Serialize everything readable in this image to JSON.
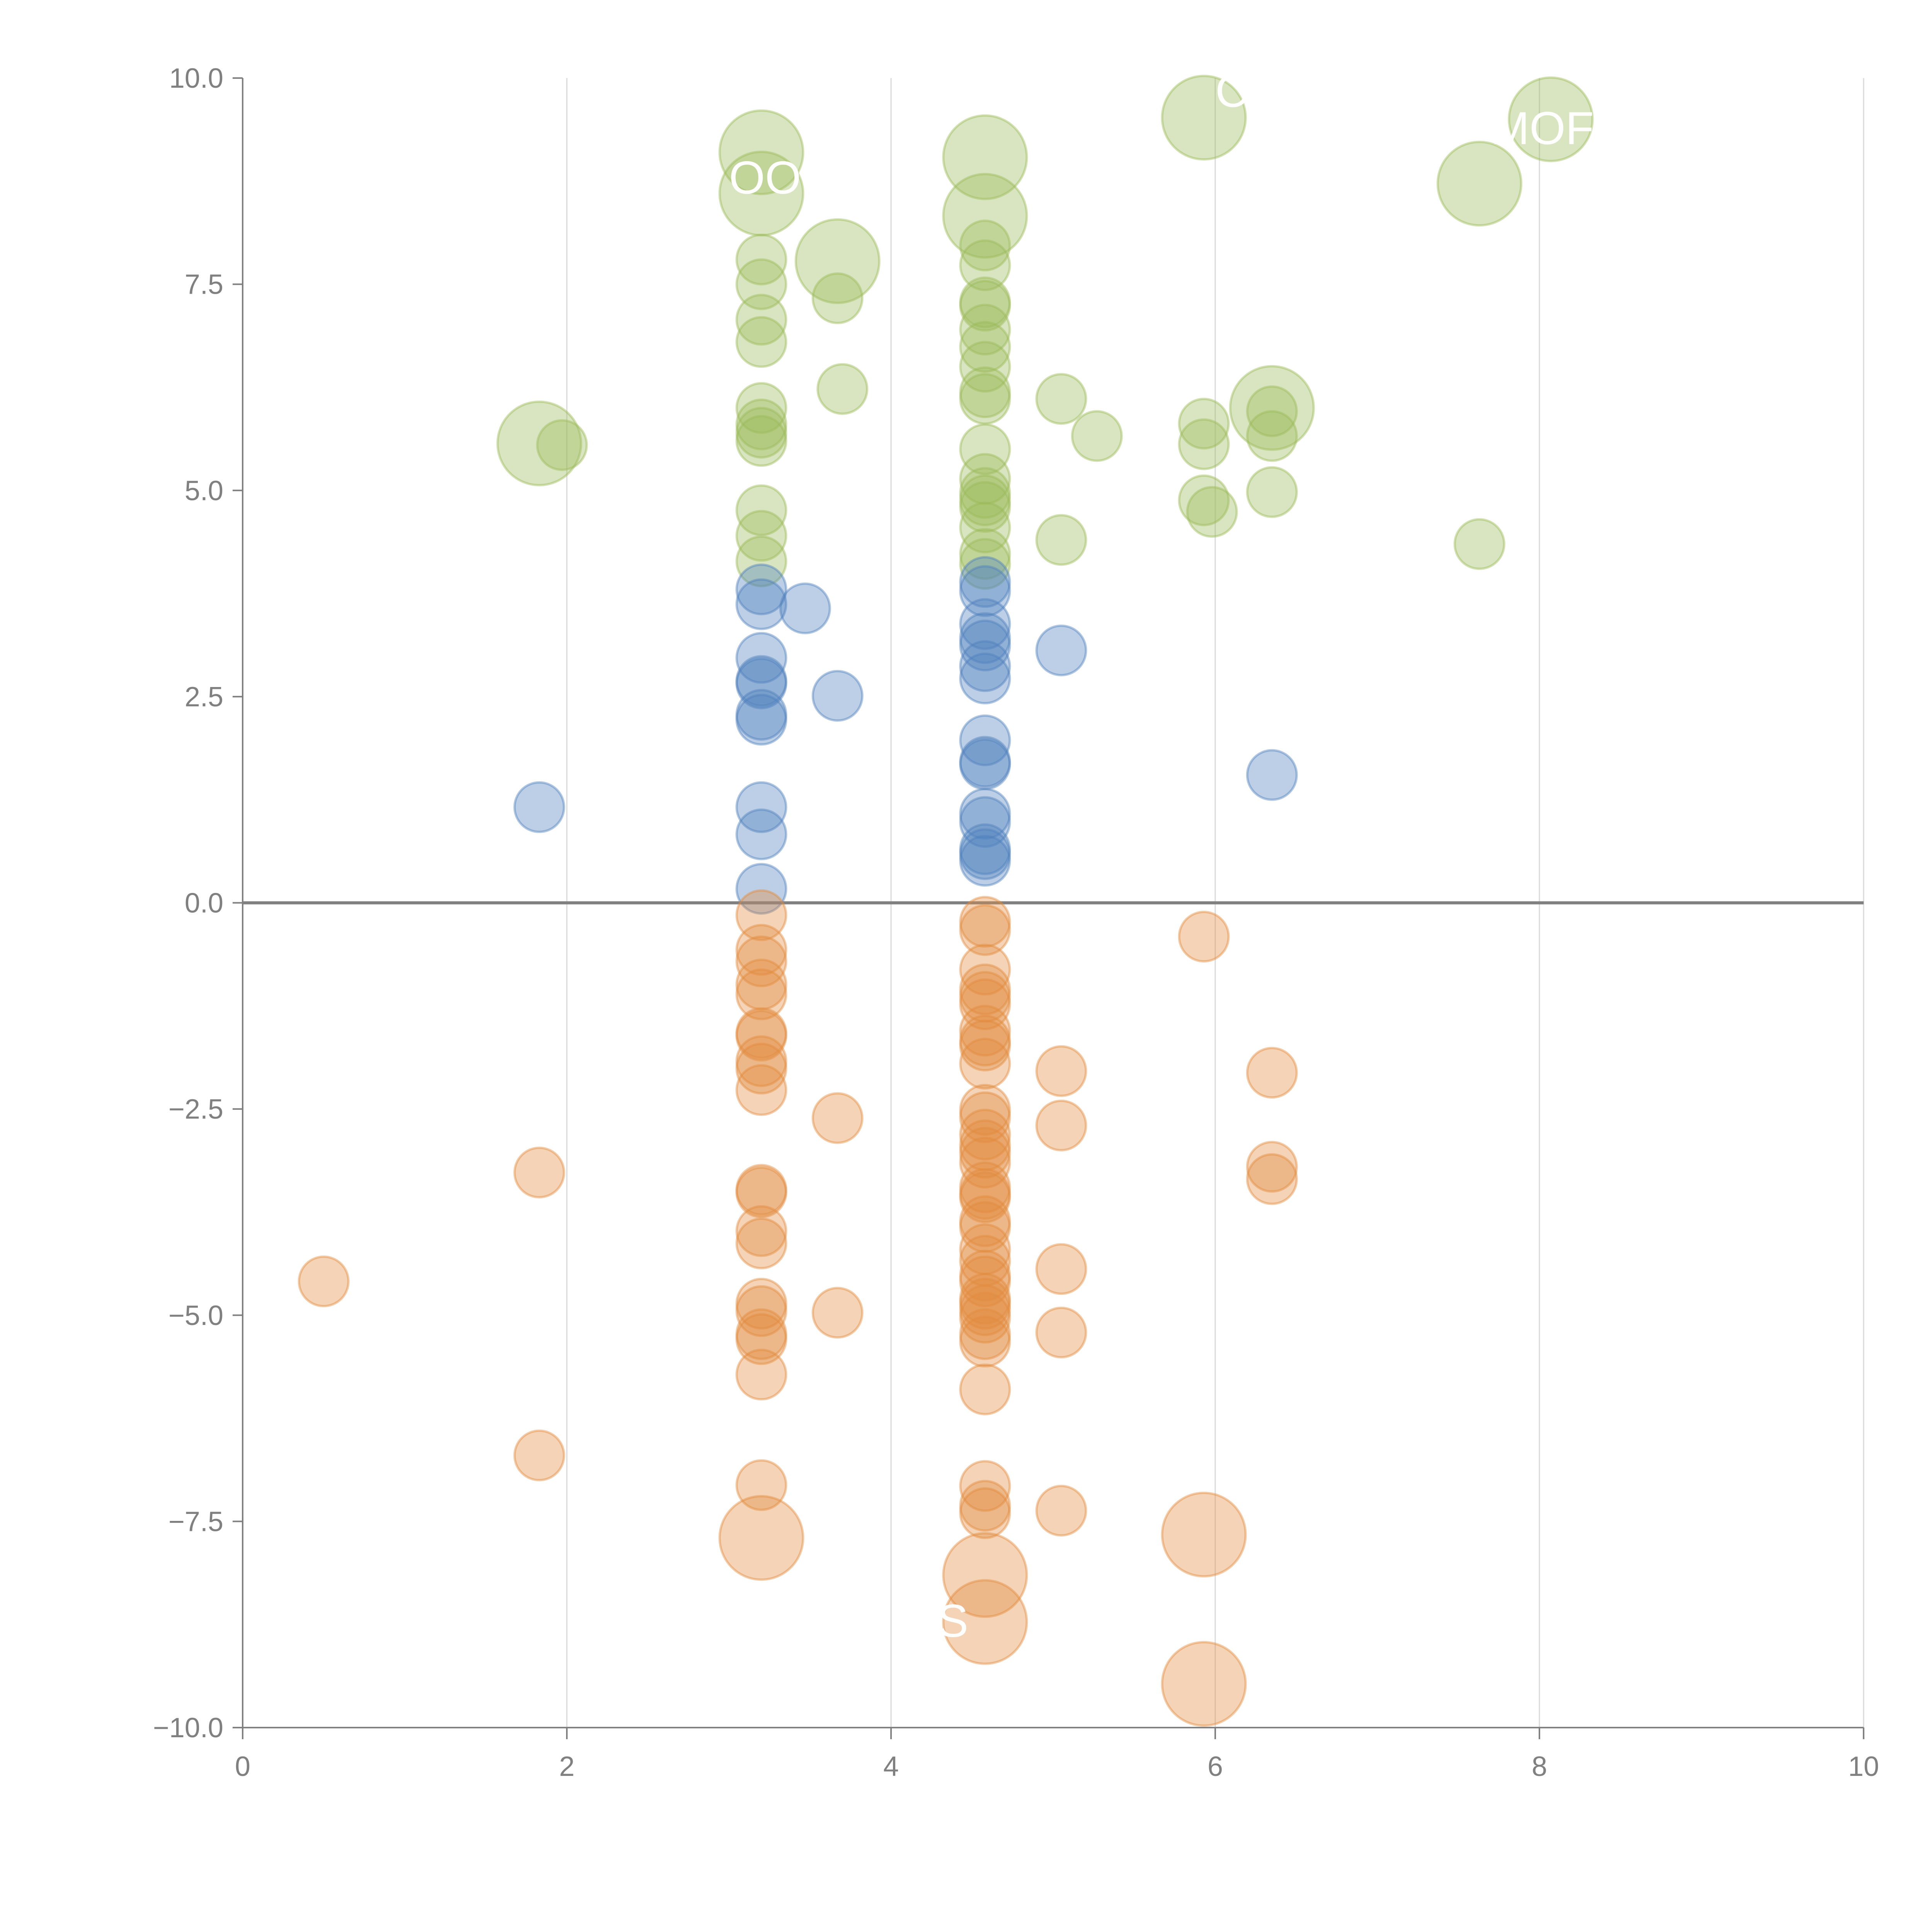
{
  "chart_data": {
    "type": "scatter",
    "variant": "bubble",
    "title": "",
    "xlabel": "",
    "ylabel": "",
    "xlim": [
      0,
      10
    ],
    "ylim": [
      -10,
      10
    ],
    "x_ticks": [
      0,
      2,
      4,
      6,
      8,
      10
    ],
    "x_tick_labels": [
      "0",
      "2",
      "4",
      "6",
      "8",
      "10"
    ],
    "y_ticks": [
      -10,
      -7.5,
      -5,
      -2.5,
      0,
      2.5,
      5,
      7.5,
      10
    ],
    "y_tick_labels": [
      "−10.0",
      "−7.5",
      "−5.0",
      "−2.5",
      "0.0",
      "2.5",
      "5.0",
      "7.5",
      "10.0"
    ],
    "grid": "vertical major lines at x ticks",
    "reference_line": {
      "y": 0
    },
    "legend": "none",
    "size_note": "size: 1 = small bubble, 2 = large bubble",
    "series": [
      {
        "name": "green",
        "color": "#9bbb59",
        "points": [
          [
            3.2,
            9.1,
            2
          ],
          [
            3.2,
            8.6,
            2
          ],
          [
            3.2,
            7.8,
            1
          ],
          [
            3.2,
            7.5,
            1
          ],
          [
            3.2,
            7.07,
            1
          ],
          [
            3.2,
            6.8,
            1
          ],
          [
            3.2,
            6.0,
            1
          ],
          [
            3.2,
            5.8,
            1
          ],
          [
            3.2,
            5.7,
            1
          ],
          [
            3.2,
            5.6,
            1
          ],
          [
            3.2,
            4.76,
            1
          ],
          [
            3.2,
            4.45,
            1
          ],
          [
            3.2,
            4.14,
            1
          ],
          [
            3.67,
            7.78,
            2
          ],
          [
            3.67,
            7.33,
            1
          ],
          [
            3.7,
            6.23,
            1
          ],
          [
            1.83,
            5.57,
            2
          ],
          [
            1.97,
            5.55,
            1
          ],
          [
            4.58,
            9.04,
            2
          ],
          [
            4.58,
            8.33,
            2
          ],
          [
            4.58,
            7.97,
            1
          ],
          [
            4.58,
            7.73,
            1
          ],
          [
            4.58,
            7.28,
            1
          ],
          [
            4.58,
            7.24,
            1
          ],
          [
            4.58,
            6.95,
            1
          ],
          [
            4.58,
            6.74,
            1
          ],
          [
            4.58,
            6.5,
            1
          ],
          [
            4.58,
            6.19,
            1
          ],
          [
            4.58,
            6.11,
            1
          ],
          [
            4.58,
            5.5,
            1
          ],
          [
            4.58,
            5.14,
            1
          ],
          [
            4.58,
            4.97,
            1
          ],
          [
            4.58,
            4.88,
            1
          ],
          [
            4.58,
            4.8,
            1
          ],
          [
            4.58,
            4.55,
            1
          ],
          [
            4.58,
            4.23,
            1
          ],
          [
            4.58,
            4.11,
            1
          ],
          [
            5.05,
            6.11,
            1
          ],
          [
            5.05,
            4.4,
            1
          ],
          [
            5.27,
            5.66,
            1
          ],
          [
            5.93,
            9.52,
            2
          ],
          [
            5.93,
            5.81,
            1
          ],
          [
            5.93,
            5.56,
            1
          ],
          [
            5.93,
            4.88,
            1
          ],
          [
            5.98,
            4.74,
            1
          ],
          [
            6.35,
            6.0,
            2
          ],
          [
            6.35,
            5.96,
            1
          ],
          [
            6.35,
            5.66,
            1
          ],
          [
            6.35,
            4.98,
            1
          ],
          [
            7.63,
            8.72,
            2
          ],
          [
            7.63,
            4.35,
            1
          ],
          [
            8.07,
            9.5,
            2
          ]
        ]
      },
      {
        "name": "blue",
        "color": "#4f81bd",
        "points": [
          [
            3.2,
            3.8,
            1
          ],
          [
            3.2,
            3.62,
            1
          ],
          [
            3.2,
            2.97,
            1
          ],
          [
            3.2,
            2.69,
            1
          ],
          [
            3.2,
            2.66,
            1
          ],
          [
            3.2,
            2.28,
            1
          ],
          [
            3.2,
            2.22,
            1
          ],
          [
            3.2,
            1.16,
            1
          ],
          [
            3.2,
            0.83,
            1
          ],
          [
            3.2,
            0.17,
            1
          ],
          [
            3.47,
            3.57,
            1
          ],
          [
            3.67,
            2.51,
            1
          ],
          [
            1.83,
            1.16,
            1
          ],
          [
            4.58,
            3.89,
            1
          ],
          [
            4.58,
            3.78,
            1
          ],
          [
            4.58,
            3.38,
            1
          ],
          [
            4.58,
            3.21,
            1
          ],
          [
            4.58,
            3.12,
            1
          ],
          [
            4.58,
            2.87,
            1
          ],
          [
            4.58,
            2.72,
            1
          ],
          [
            4.58,
            1.97,
            1
          ],
          [
            4.58,
            1.71,
            1
          ],
          [
            4.58,
            1.68,
            1
          ],
          [
            4.58,
            1.08,
            1
          ],
          [
            4.58,
            0.98,
            1
          ],
          [
            4.58,
            0.65,
            1
          ],
          [
            4.58,
            0.59,
            1
          ],
          [
            4.58,
            0.51,
            1
          ],
          [
            5.05,
            3.06,
            1
          ],
          [
            6.35,
            1.55,
            1
          ]
        ]
      },
      {
        "name": "orange",
        "color": "#e38b3e",
        "points": [
          [
            3.2,
            -0.15,
            1
          ],
          [
            3.2,
            -0.57,
            1
          ],
          [
            3.2,
            -0.71,
            1
          ],
          [
            3.2,
            -0.99,
            1
          ],
          [
            3.2,
            -1.11,
            1
          ],
          [
            3.2,
            -1.58,
            1
          ],
          [
            3.2,
            -1.61,
            1
          ],
          [
            3.2,
            -1.92,
            1
          ],
          [
            3.2,
            -2.01,
            1
          ],
          [
            3.2,
            -2.27,
            1
          ],
          [
            3.2,
            -3.48,
            1
          ],
          [
            3.2,
            -3.51,
            1
          ],
          [
            3.2,
            -3.98,
            1
          ],
          [
            3.2,
            -4.13,
            1
          ],
          [
            3.2,
            -4.86,
            1
          ],
          [
            3.2,
            -4.95,
            1
          ],
          [
            3.2,
            -5.23,
            1
          ],
          [
            3.2,
            -5.29,
            1
          ],
          [
            3.2,
            -5.72,
            1
          ],
          [
            3.2,
            -7.06,
            1
          ],
          [
            3.2,
            -7.7,
            2
          ],
          [
            3.67,
            -2.61,
            1
          ],
          [
            3.67,
            -4.97,
            1
          ],
          [
            1.83,
            -3.27,
            1
          ],
          [
            1.83,
            -6.7,
            1
          ],
          [
            0.5,
            -4.59,
            1
          ],
          [
            4.58,
            -0.23,
            1
          ],
          [
            4.58,
            -0.33,
            1
          ],
          [
            4.58,
            -0.81,
            1
          ],
          [
            4.58,
            -1.05,
            1
          ],
          [
            4.58,
            -1.14,
            1
          ],
          [
            4.58,
            -1.23,
            1
          ],
          [
            4.58,
            -1.55,
            1
          ],
          [
            4.58,
            -1.67,
            1
          ],
          [
            4.58,
            -1.73,
            1
          ],
          [
            4.58,
            -1.95,
            1
          ],
          [
            4.58,
            -2.51,
            1
          ],
          [
            4.58,
            -2.6,
            1
          ],
          [
            4.58,
            -2.81,
            1
          ],
          [
            4.58,
            -2.94,
            1
          ],
          [
            4.58,
            -3.03,
            1
          ],
          [
            4.58,
            -3.15,
            1
          ],
          [
            4.58,
            -3.45,
            1
          ],
          [
            4.58,
            -3.53,
            1
          ],
          [
            4.58,
            -3.57,
            1
          ],
          [
            4.58,
            -3.86,
            1
          ],
          [
            4.58,
            -3.93,
            1
          ],
          [
            4.58,
            -4.2,
            1
          ],
          [
            4.58,
            -4.34,
            1
          ],
          [
            4.58,
            -4.52,
            1
          ],
          [
            4.58,
            -4.59,
            1
          ],
          [
            4.58,
            -4.8,
            1
          ],
          [
            4.58,
            -4.86,
            1
          ],
          [
            4.58,
            -4.94,
            1
          ],
          [
            4.58,
            -5.03,
            1
          ],
          [
            4.58,
            -5.23,
            1
          ],
          [
            4.58,
            -5.32,
            1
          ],
          [
            4.58,
            -5.9,
            1
          ],
          [
            4.58,
            -7.07,
            1
          ],
          [
            4.58,
            -7.31,
            1
          ],
          [
            4.58,
            -7.4,
            1
          ],
          [
            4.58,
            -8.15,
            2
          ],
          [
            4.58,
            -8.72,
            2
          ],
          [
            5.05,
            -2.04,
            1
          ],
          [
            5.05,
            -2.7,
            1
          ],
          [
            5.05,
            -4.44,
            1
          ],
          [
            5.05,
            -5.21,
            1
          ],
          [
            5.05,
            -7.37,
            1
          ],
          [
            5.93,
            -0.41,
            1
          ],
          [
            5.93,
            -7.66,
            2
          ],
          [
            5.93,
            -9.47,
            2
          ],
          [
            6.35,
            -2.06,
            1
          ],
          [
            6.35,
            -3.2,
            1
          ],
          [
            6.35,
            -3.35,
            1
          ]
        ]
      }
    ],
    "annotations": [
      {
        "text": "OO",
        "x": 3.0,
        "y": 8.6
      },
      {
        "text": "C",
        "x": 6.0,
        "y": 9.65
      },
      {
        "text": "MOF",
        "x": 7.7,
        "y": 9.2
      },
      {
        "text": "D S",
        "x": 4.0,
        "y": -8.9
      }
    ]
  }
}
